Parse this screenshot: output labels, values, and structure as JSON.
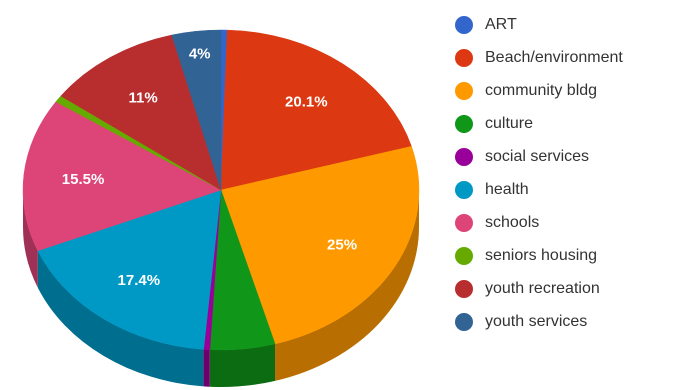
{
  "chart_data": {
    "type": "pie",
    "title": "",
    "style": "3d",
    "legend_position": "right",
    "categories": [
      "ART",
      "Beach/environment",
      "community bldg",
      "culture",
      "social services",
      "health",
      "schools",
      "seniors housing",
      "youth recreation",
      "youth services"
    ],
    "values": [
      0.5,
      20.1,
      25,
      5.3,
      0.5,
      17.4,
      15.5,
      0.7,
      11,
      4
    ],
    "colors": [
      "#3366cc",
      "#dc3912",
      "#ff9900",
      "#109618",
      "#990099",
      "#0099c6",
      "#dd4477",
      "#66aa00",
      "#b82e2e",
      "#316395"
    ],
    "data_labels": [
      "",
      "20.1%",
      "25%",
      "",
      "",
      "17.4%",
      "15.5%",
      "",
      "11%",
      "4%"
    ]
  }
}
